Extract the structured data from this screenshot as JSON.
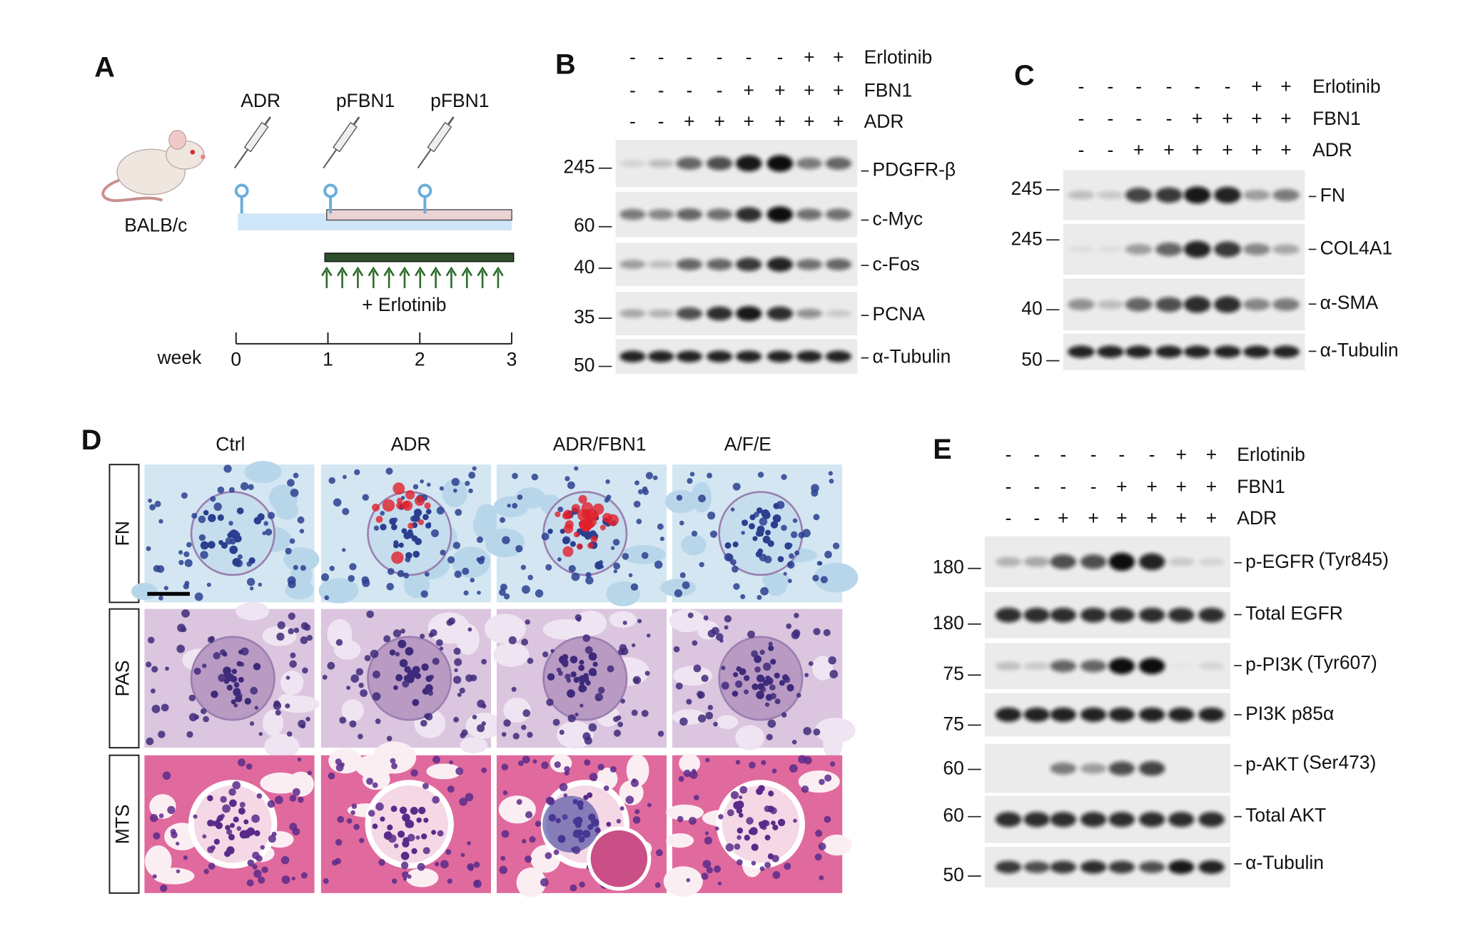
{
  "panel_a": {
    "label": "A",
    "strain": "BALB/c",
    "injections": [
      "ADR",
      "pFBN1",
      "pFBN1"
    ],
    "treatment": "+ Erlotinib",
    "axis_label": "week",
    "axis_ticks": [
      0,
      1,
      2,
      3
    ]
  },
  "panel_b": {
    "label": "B",
    "treatments": [
      {
        "name": "Erlotinib",
        "signs": [
          "-",
          "-",
          "-",
          "-",
          "-",
          "-",
          "+",
          "+"
        ]
      },
      {
        "name": "FBN1",
        "signs": [
          "-",
          "-",
          "-",
          "-",
          "+",
          "+",
          "+",
          "+"
        ]
      },
      {
        "name": "ADR",
        "signs": [
          "-",
          "-",
          "+",
          "+",
          "+",
          "+",
          "+",
          "+"
        ]
      }
    ],
    "blots": [
      {
        "marker": 245,
        "protein": "PDGFR-β"
      },
      {
        "marker": 60,
        "protein": "c-Myc"
      },
      {
        "marker": 40,
        "protein": "c-Fos"
      },
      {
        "marker": 35,
        "protein": "PCNA"
      },
      {
        "marker": 50,
        "protein": "α-Tubulin"
      }
    ]
  },
  "panel_c": {
    "label": "C",
    "treatments": [
      {
        "name": "Erlotinib",
        "signs": [
          "-",
          "-",
          "-",
          "-",
          "-",
          "-",
          "+",
          "+"
        ]
      },
      {
        "name": "FBN1",
        "signs": [
          "-",
          "-",
          "-",
          "-",
          "+",
          "+",
          "+",
          "+"
        ]
      },
      {
        "name": "ADR",
        "signs": [
          "-",
          "-",
          "+",
          "+",
          "+",
          "+",
          "+",
          "+"
        ]
      }
    ],
    "blots": [
      {
        "marker": 245,
        "protein": "FN"
      },
      {
        "marker": 245,
        "protein": "COL4A1"
      },
      {
        "marker": 40,
        "protein": "α-SMA"
      },
      {
        "marker": 50,
        "protein": "α-Tubulin"
      }
    ]
  },
  "panel_d": {
    "label": "D",
    "columns": [
      "Ctrl",
      "ADR",
      "ADR/FBN1",
      "A/F/E"
    ],
    "rows": [
      "FN",
      "PAS",
      "MTS"
    ]
  },
  "panel_e": {
    "label": "E",
    "treatments": [
      {
        "name": "Erlotinib",
        "signs": [
          "-",
          "-",
          "-",
          "-",
          "-",
          "-",
          "+",
          "+"
        ]
      },
      {
        "name": "FBN1",
        "signs": [
          "-",
          "-",
          "-",
          "-",
          "+",
          "+",
          "+",
          "+"
        ]
      },
      {
        "name": "ADR",
        "signs": [
          "-",
          "-",
          "+",
          "+",
          "+",
          "+",
          "+",
          "+"
        ]
      }
    ],
    "blots": [
      {
        "marker": 180,
        "protein": "p-EGFR",
        "site": "(Tyr845)"
      },
      {
        "marker": 180,
        "protein": "Total EGFR"
      },
      {
        "marker": 75,
        "protein": "p-PI3K",
        "site": "(Tyr607)"
      },
      {
        "marker": 75,
        "protein": "PI3K p85α"
      },
      {
        "marker": 60,
        "protein": "p-AKT",
        "site": "(Ser473)"
      },
      {
        "marker": 60,
        "protein": "Total AKT"
      },
      {
        "marker": 50,
        "protein": "α-Tubulin"
      }
    ]
  }
}
